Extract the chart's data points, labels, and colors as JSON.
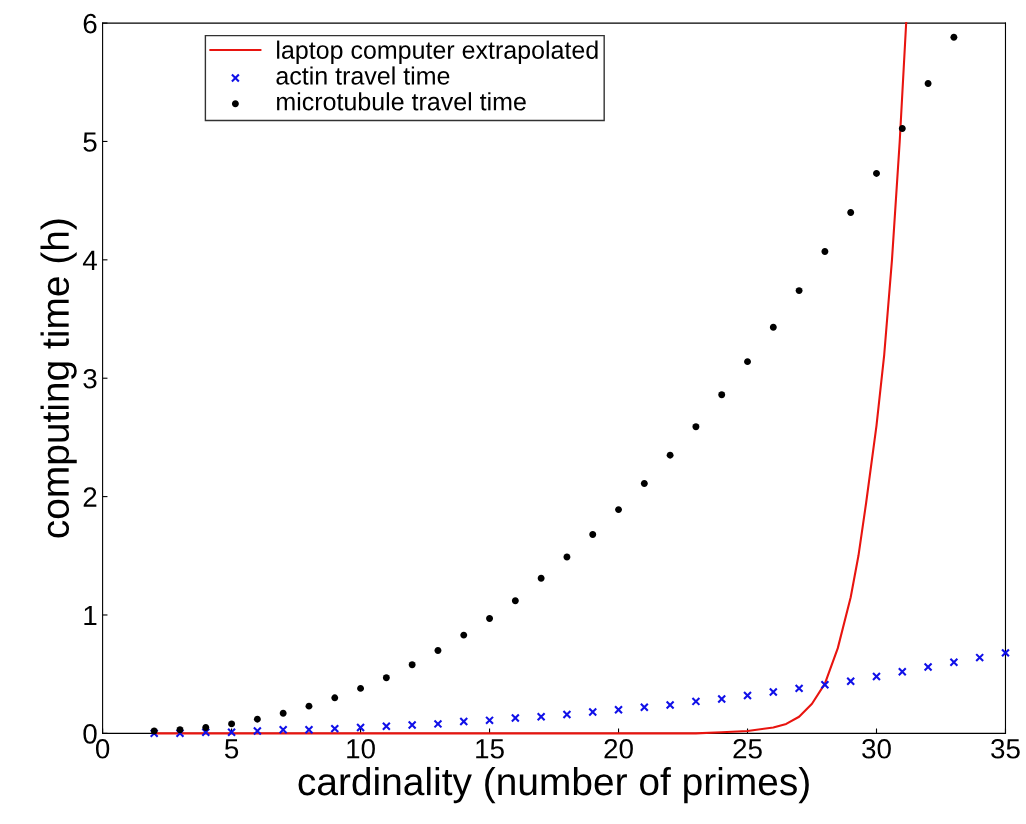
{
  "chart_data": {
    "type": "scatter",
    "xlabel": "cardinality (number of primes)",
    "ylabel": "computing time (h)",
    "xlim": [
      0,
      35
    ],
    "ylim": [
      0,
      6
    ],
    "xticks": [
      0,
      5,
      10,
      15,
      20,
      25,
      30,
      35
    ],
    "yticks": [
      0,
      1,
      2,
      3,
      4,
      5,
      6
    ],
    "grid": false,
    "legend": "top left",
    "series": [
      {
        "name": "laptop computer extrapolated",
        "type": "line",
        "color": "#e8140f",
        "marker": "none",
        "line_style": "solid",
        "x": [
          2,
          6,
          10,
          14,
          18,
          20,
          22,
          23,
          24,
          25,
          26,
          26.5,
          27,
          27.5,
          28,
          28.5,
          29,
          29.3,
          29.6,
          30,
          30.3,
          30.6,
          30.9,
          31.15
        ],
        "values": [
          0,
          0,
          0,
          0,
          0,
          0,
          0,
          0,
          0.01,
          0.02,
          0.05,
          0.08,
          0.14,
          0.25,
          0.42,
          0.72,
          1.15,
          1.5,
          1.95,
          2.6,
          3.2,
          4.0,
          5.0,
          6.0
        ]
      },
      {
        "name": "actin travel time",
        "color": "#1010e8",
        "marker": "cross",
        "x": [
          2,
          3,
          4,
          5,
          6,
          7,
          8,
          9,
          10,
          11,
          12,
          13,
          14,
          15,
          16,
          17,
          18,
          19,
          20,
          21,
          22,
          23,
          24,
          25,
          26,
          27,
          28,
          29,
          30,
          31,
          32,
          33,
          34,
          35
        ],
        "values": [
          0.0,
          0.0,
          0.01,
          0.01,
          0.02,
          0.03,
          0.03,
          0.04,
          0.05,
          0.06,
          0.07,
          0.08,
          0.1,
          0.11,
          0.13,
          0.14,
          0.16,
          0.18,
          0.2,
          0.22,
          0.24,
          0.27,
          0.29,
          0.32,
          0.35,
          0.38,
          0.41,
          0.44,
          0.48,
          0.52,
          0.56,
          0.6,
          0.64,
          0.68
        ]
      },
      {
        "name": "microtubule travel time",
        "color": "#000000",
        "marker": "circle",
        "x": [
          2,
          3,
          4,
          5,
          6,
          7,
          8,
          9,
          10,
          11,
          12,
          13,
          14,
          15,
          16,
          17,
          18,
          19,
          20,
          21,
          22,
          23,
          24,
          25,
          26,
          27,
          28,
          29,
          30,
          31,
          32,
          33
        ],
        "values": [
          0.02,
          0.03,
          0.05,
          0.08,
          0.12,
          0.17,
          0.23,
          0.3,
          0.38,
          0.47,
          0.58,
          0.7,
          0.83,
          0.97,
          1.12,
          1.31,
          1.49,
          1.68,
          1.89,
          2.11,
          2.35,
          2.59,
          2.86,
          3.14,
          3.43,
          3.74,
          4.07,
          4.4,
          4.73,
          5.11,
          5.49,
          5.88
        ]
      }
    ]
  }
}
